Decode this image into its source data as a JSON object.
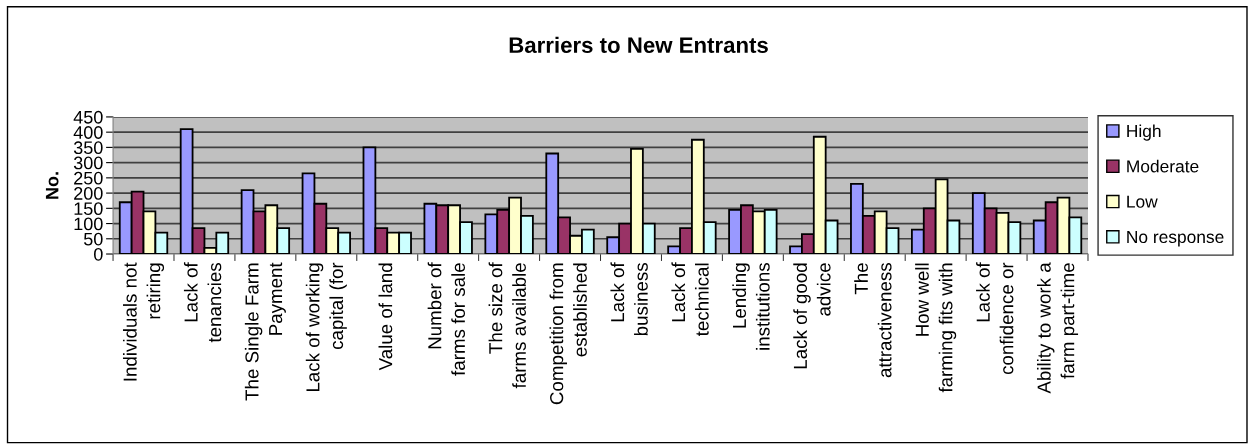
{
  "chart_data": {
    "type": "bar",
    "title": "Barriers to New Entrants",
    "ylabel": "No.",
    "categories": [
      "Individuals not\nretiring",
      "Lack of\ntenancies",
      "The Single Farm\nPayment",
      "Lack of working\ncapital (for",
      "Value of land",
      "Number of\nfarms for sale",
      "The size of\nfarms available",
      "Competition from\nestablished",
      "Lack of\nbusiness",
      "Lack of\ntechnical",
      "Lending\ninstitutions",
      "Lack of good\nadvice",
      "The\nattractiveness",
      "How well\nfarming fits with",
      "Lack of\nconfidence or",
      "Ability to work a\nfarm part-time"
    ],
    "series": [
      {
        "name": "High",
        "color": "#9999ff",
        "values": [
          170,
          410,
          210,
          265,
          350,
          165,
          130,
          330,
          55,
          25,
          145,
          25,
          230,
          80,
          200,
          110
        ]
      },
      {
        "name": "Moderate",
        "color": "#993366",
        "values": [
          205,
          85,
          140,
          165,
          85,
          160,
          145,
          120,
          100,
          85,
          160,
          65,
          125,
          150,
          150,
          170
        ]
      },
      {
        "name": "Low",
        "color": "#ffffcc",
        "values": [
          140,
          20,
          160,
          85,
          70,
          160,
          185,
          60,
          345,
          375,
          140,
          385,
          140,
          245,
          135,
          185
        ]
      },
      {
        "name": "No response",
        "color": "#ccffff",
        "values": [
          70,
          70,
          85,
          70,
          70,
          105,
          125,
          80,
          100,
          105,
          145,
          110,
          85,
          110,
          105,
          120
        ]
      }
    ],
    "ylim": [
      0,
      450
    ],
    "yticks": [
      0,
      50,
      100,
      150,
      200,
      250,
      300,
      350,
      400,
      450
    ],
    "grid": "y",
    "legend": "right"
  }
}
